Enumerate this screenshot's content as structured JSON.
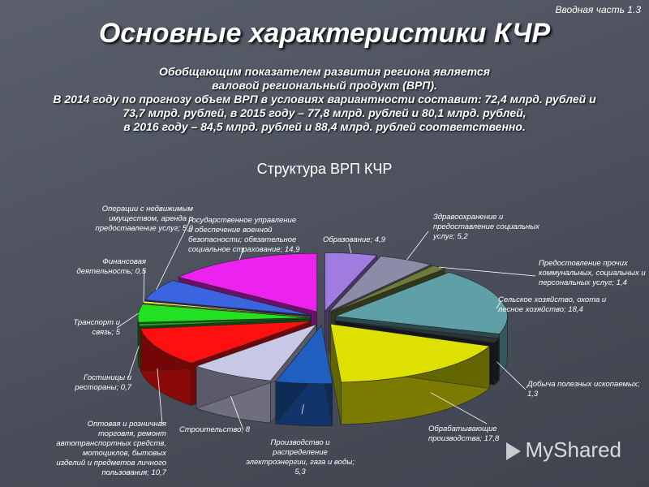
{
  "corner_label": "Вводная часть 1.3",
  "title": "Основные характеристики КЧР",
  "intro_lines": [
    "Обобщающим показателем развития региона является",
    "валовой региональный продукт (ВРП).",
    "В 2014 году по прогнозу объем ВРП в условиях вариантности составит: 72,4 млрд. рублей  и",
    "73,7 млрд. рублей,  в  2015 году – 77,8 млрд. рублей и 80,1 млрд. рублей,",
    "в 2016 году – 84,5 млрд. рублей и 88,4 млрд. рублей соответственно."
  ],
  "chart_data": {
    "type": "pie",
    "title": "Структура ВРП КЧР",
    "slices": [
      {
        "name": "Образование",
        "value": 4.9,
        "color": "#a07be0",
        "label": [
          "Образование; 4,9"
        ]
      },
      {
        "name": "Здравоохранение и предоставление социальных услуг",
        "value": 5.2,
        "color": "#8c8ca8",
        "label": [
          "Здравоохранение и",
          "предоставление социальных",
          "услуг; 5,2"
        ]
      },
      {
        "name": "Предоставление прочих коммунальных, социальных и персональных услуг",
        "value": 1.4,
        "color": "#6f7a3c",
        "label": [
          "Предостовление прочих",
          "коммунальных, социальных и",
          "персональных услуг; 1,4"
        ]
      },
      {
        "name": "Сельское хозяйство, охота и лесное хозяйство",
        "value": 18.4,
        "color": "#5fa0a8",
        "label": [
          "Сельское хозяйство, охота и",
          "лесное хозяйство; 18,4"
        ]
      },
      {
        "name": "Добыча полезных ископаемых",
        "value": 1.3,
        "color": "#2c3238",
        "label": [
          "Добыча полезных ископаемых;",
          "1,3"
        ]
      },
      {
        "name": "Обрабатывающие производства",
        "value": 17.8,
        "color": "#dde000",
        "label": [
          "Обрабатывающие",
          "производства; 17,8"
        ]
      },
      {
        "name": "Производство и распределение электроэнергии, газа и воды",
        "value": 5.3,
        "color": "#1f5fc0",
        "label": [
          "Производство и",
          "распределение",
          "электроэнергии, газа и воды;",
          "5,3"
        ]
      },
      {
        "name": "Строительство",
        "value": 8,
        "color": "#c8c8e6",
        "label": [
          "Строительство; 8"
        ]
      },
      {
        "name": "Оптовая и розничная торговля, ремонт автотранспортных средств, мотоциклов, бытовых изделий и предметов личного пользования",
        "value": 10.7,
        "color": "#ff1010",
        "label": [
          "Оптовая и розничная",
          "торговля, ремонт",
          "автотранспортных средств,",
          "мотоциклов, бытовых",
          "изделий и предметов личного",
          "пользования; 10,7"
        ]
      },
      {
        "name": "Гостиницы и рестораны",
        "value": 0.7,
        "color": "#20a020",
        "label": [
          "Гостиницы и",
          "рестораны; 0,7"
        ]
      },
      {
        "name": "Транспорт и связь",
        "value": 5,
        "color": "#22e022",
        "label": [
          "Транспорт и",
          "связь; 5"
        ]
      },
      {
        "name": "Финансовая деятельность",
        "value": 0.5,
        "color": "#ffff40",
        "label": [
          "Финансовая",
          "деятельность; 0,5"
        ]
      },
      {
        "name": "Операции с недвижимым имуществом, аренда и предоставление услуг",
        "value": 5.9,
        "color": "#3a64e0",
        "label": [
          "Операции с недвижимым",
          "имуществом, аренда и",
          "предоставление услуг; 5,9"
        ]
      },
      {
        "name": "Государственное управление и обеспечение военной безопасности; обязательное социальное страхование",
        "value": 14.9,
        "color": "#ee22ee",
        "label": [
          "Государственное управление",
          "и обеспечение военной",
          "безопасности; обязательное",
          "социальное страхование; 14,9"
        ]
      }
    ]
  },
  "watermark": "MyShared"
}
